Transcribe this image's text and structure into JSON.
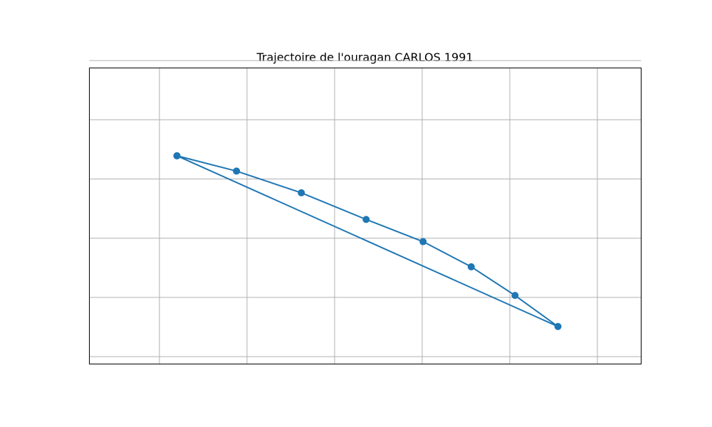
{
  "chart_data": {
    "type": "line",
    "title": "Trajectoire de l'ouragan CARLOS 1991",
    "xlabel": "",
    "ylabel": "",
    "xlim": [
      -180,
      135
    ],
    "ylim": [
      -65,
      55
    ],
    "x_gridlines": [
      -140,
      -90,
      -40,
      10,
      60,
      110
    ],
    "y_gridlines": [
      -62,
      -38,
      -14,
      10,
      34,
      58
    ],
    "grid": true,
    "tick_labels_visible": false,
    "series": [
      {
        "name": "",
        "color": "#1f77b4",
        "marker": "circle",
        "points": [
          {
            "lon": -130.0,
            "lat": 19.4
          },
          {
            "lon": -96.0,
            "lat": 13.2
          },
          {
            "lon": -59.0,
            "lat": 4.4
          },
          {
            "lon": -22.0,
            "lat": -6.4
          },
          {
            "lon": 10.5,
            "lat": -15.4
          },
          {
            "lon": 38.0,
            "lat": -25.6
          },
          {
            "lon": 63.0,
            "lat": -37.2
          },
          {
            "lon": 87.5,
            "lat": -49.8
          },
          {
            "lon": -130.0,
            "lat": 19.4
          }
        ]
      }
    ]
  }
}
